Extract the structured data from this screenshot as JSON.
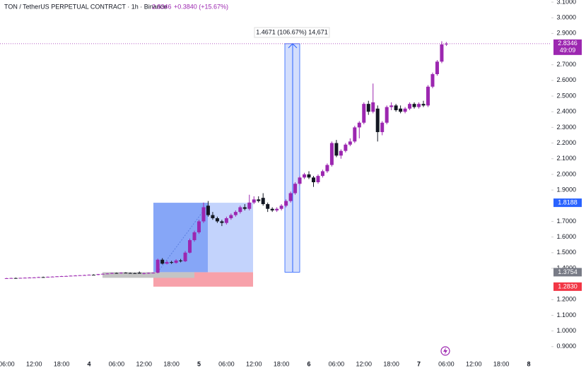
{
  "header": {
    "symbol": "TON / TetherUS PERPETUAL CONTRACT · 1h · Binance",
    "price": "2.8346",
    "change": "+0.3840 (+15.67%)"
  },
  "chart_data": {
    "type": "candlestick",
    "up_color": "#9c27b0",
    "down_color": "#131722",
    "x": [
      -18,
      -17,
      -16,
      -15,
      -14,
      -13,
      -12,
      -11,
      -10,
      -9,
      -8,
      -7,
      -6,
      -5,
      -4,
      -3,
      -2,
      -1,
      0,
      1,
      2,
      3,
      4,
      5,
      6,
      7,
      8,
      9,
      10,
      11,
      12,
      13,
      14,
      15,
      16,
      17,
      18,
      19,
      20,
      21,
      22,
      23,
      24,
      25,
      26,
      27,
      28,
      29,
      30,
      31,
      32,
      33,
      34,
      35,
      36,
      37,
      38,
      39,
      40,
      41,
      42,
      43,
      44,
      45,
      46,
      47,
      48,
      49,
      50,
      51,
      52,
      53,
      54,
      55,
      56,
      57,
      58,
      59,
      60,
      61,
      62,
      63,
      64,
      65,
      66,
      67,
      68,
      69,
      70,
      71,
      72,
      73,
      74,
      75,
      76,
      77,
      78
    ],
    "open": [
      1.336,
      1.337,
      1.338,
      1.337,
      1.339,
      1.34,
      1.341,
      1.342,
      1.344,
      1.343,
      1.346,
      1.347,
      1.349,
      1.35,
      1.351,
      1.353,
      1.354,
      1.356,
      1.357,
      1.359,
      1.358,
      1.363,
      1.365,
      1.367,
      1.37,
      1.368,
      1.372,
      1.37,
      1.369,
      1.372,
      1.366,
      1.369,
      1.371,
      1.372,
      1.455,
      1.43,
      1.44,
      1.435,
      1.45,
      1.445,
      1.5,
      1.58,
      1.63,
      1.7,
      1.8,
      1.74,
      1.72,
      1.7,
      1.69,
      1.72,
      1.74,
      1.76,
      1.79,
      1.78,
      1.82,
      1.84,
      1.85,
      1.81,
      1.78,
      1.77,
      1.78,
      1.8,
      1.83,
      1.88,
      1.94,
      1.98,
      2.0,
      1.98,
      1.95,
      1.99,
      2.02,
      2.06,
      2.2,
      2.12,
      2.15,
      2.19,
      2.21,
      2.3,
      2.33,
      2.45,
      2.4,
      2.42,
      2.27,
      2.33,
      2.43,
      2.44,
      2.42,
      2.4,
      2.42,
      2.45,
      2.43,
      2.45,
      2.44,
      2.56,
      2.64,
      2.72,
      2.83
    ],
    "high": [
      1.339,
      1.34,
      1.341,
      1.34,
      1.342,
      1.343,
      1.344,
      1.346,
      1.347,
      1.347,
      1.349,
      1.35,
      1.352,
      1.353,
      1.355,
      1.356,
      1.357,
      1.359,
      1.361,
      1.362,
      1.364,
      1.367,
      1.369,
      1.372,
      1.373,
      1.374,
      1.375,
      1.373,
      1.372,
      1.38,
      1.372,
      1.373,
      1.374,
      1.462,
      1.465,
      1.45,
      1.448,
      1.458,
      1.46,
      1.51,
      1.59,
      1.64,
      1.71,
      1.82,
      1.83,
      1.76,
      1.73,
      1.71,
      1.73,
      1.75,
      1.77,
      1.8,
      1.81,
      1.87,
      1.86,
      1.86,
      1.88,
      1.82,
      1.79,
      1.79,
      1.81,
      1.84,
      1.89,
      1.95,
      1.99,
      2.01,
      2.02,
      1.99,
      2.0,
      2.03,
      2.07,
      2.21,
      2.22,
      2.16,
      2.2,
      2.23,
      2.31,
      2.34,
      2.46,
      2.47,
      2.58,
      2.44,
      2.34,
      2.44,
      2.46,
      2.45,
      2.44,
      2.43,
      2.46,
      2.46,
      2.46,
      2.47,
      2.57,
      2.65,
      2.73,
      2.85,
      2.845
    ],
    "low": [
      1.334,
      1.335,
      1.336,
      1.335,
      1.337,
      1.338,
      1.339,
      1.34,
      1.342,
      1.341,
      1.344,
      1.345,
      1.347,
      1.348,
      1.349,
      1.351,
      1.352,
      1.354,
      1.355,
      1.357,
      1.356,
      1.361,
      1.363,
      1.365,
      1.366,
      1.366,
      1.368,
      1.366,
      1.366,
      1.366,
      1.362,
      1.365,
      1.368,
      1.368,
      1.425,
      1.425,
      1.428,
      1.43,
      1.438,
      1.44,
      1.495,
      1.57,
      1.62,
      1.69,
      1.73,
      1.71,
      1.69,
      1.67,
      1.68,
      1.71,
      1.73,
      1.75,
      1.77,
      1.77,
      1.81,
      1.82,
      1.8,
      1.76,
      1.76,
      1.76,
      1.77,
      1.79,
      1.82,
      1.87,
      1.93,
      1.97,
      1.97,
      1.92,
      1.94,
      1.98,
      2.01,
      2.05,
      2.11,
      2.1,
      2.14,
      2.18,
      2.2,
      2.23,
      2.32,
      2.38,
      2.39,
      2.21,
      2.25,
      2.32,
      2.41,
      2.4,
      2.39,
      2.39,
      2.41,
      2.42,
      2.42,
      2.43,
      2.43,
      2.55,
      2.63,
      2.71,
      2.82
    ],
    "close": [
      1.337,
      1.338,
      1.337,
      1.339,
      1.34,
      1.341,
      1.342,
      1.344,
      1.343,
      1.346,
      1.347,
      1.349,
      1.35,
      1.351,
      1.353,
      1.354,
      1.356,
      1.357,
      1.359,
      1.358,
      1.363,
      1.365,
      1.367,
      1.37,
      1.368,
      1.372,
      1.37,
      1.369,
      1.368,
      1.366,
      1.369,
      1.371,
      1.372,
      1.455,
      1.43,
      1.44,
      1.435,
      1.45,
      1.445,
      1.5,
      1.58,
      1.63,
      1.7,
      1.79,
      1.74,
      1.72,
      1.7,
      1.69,
      1.72,
      1.74,
      1.76,
      1.79,
      1.78,
      1.82,
      1.84,
      1.83,
      1.81,
      1.78,
      1.77,
      1.78,
      1.8,
      1.83,
      1.88,
      1.94,
      1.98,
      2.0,
      1.98,
      1.95,
      1.99,
      2.02,
      2.06,
      2.2,
      2.12,
      2.15,
      2.19,
      2.21,
      2.3,
      2.33,
      2.45,
      2.4,
      2.46,
      2.27,
      2.33,
      2.43,
      2.44,
      2.41,
      2.4,
      2.42,
      2.45,
      2.43,
      2.45,
      2.44,
      2.56,
      2.64,
      2.72,
      2.83,
      2.8346
    ],
    "xlim": [
      -19.44,
      100.93
    ],
    "xticks": [
      {
        "value": -18,
        "label": "06:00"
      },
      {
        "value": -12,
        "label": "12:00"
      },
      {
        "value": -6,
        "label": "18:00"
      },
      {
        "value": 0,
        "label": "4"
      },
      {
        "value": 6,
        "label": "06:00"
      },
      {
        "value": 12,
        "label": "12:00"
      },
      {
        "value": 18,
        "label": "18:00"
      },
      {
        "value": 24,
        "label": "5"
      },
      {
        "value": 30,
        "label": "06:00"
      },
      {
        "value": 36,
        "label": "12:00"
      },
      {
        "value": 42,
        "label": "18:00"
      },
      {
        "value": 48,
        "label": "6"
      },
      {
        "value": 54,
        "label": "06:00"
      },
      {
        "value": 60,
        "label": "12:00"
      },
      {
        "value": 66,
        "label": "18:00"
      },
      {
        "value": 72,
        "label": "7"
      },
      {
        "value": 78,
        "label": "06:00"
      },
      {
        "value": 84,
        "label": "12:00"
      },
      {
        "value": 90,
        "label": "18:00"
      },
      {
        "value": 96,
        "label": "8"
      }
    ],
    "ylim": [
      0.8,
      3.1
    ],
    "yticks": [
      {
        "value": 3.1,
        "label": "3.1000"
      },
      {
        "value": 3.0,
        "label": "3.0000"
      },
      {
        "value": 2.9,
        "label": "2.9000"
      },
      {
        "value": 2.7,
        "label": "2.7000"
      },
      {
        "value": 2.6,
        "label": "2.6000"
      },
      {
        "value": 2.5,
        "label": "2.5000"
      },
      {
        "value": 2.4,
        "label": "2.4000"
      },
      {
        "value": 2.3,
        "label": "2.3000"
      },
      {
        "value": 2.2,
        "label": "2.2000"
      },
      {
        "value": 2.1,
        "label": "2.1000"
      },
      {
        "value": 2.0,
        "label": "2.0000"
      },
      {
        "value": 1.9,
        "label": "1.9000"
      },
      {
        "value": 1.7,
        "label": "1.7000"
      },
      {
        "value": 1.6,
        "label": "1.6000"
      },
      {
        "value": 1.5,
        "label": "1.5000"
      },
      {
        "value": 1.4,
        "label": "1.4000"
      },
      {
        "value": 1.2,
        "label": "1.2000"
      },
      {
        "value": 1.1,
        "label": "1.1000"
      },
      {
        "value": 1.0,
        "label": "1.0000"
      },
      {
        "value": 0.9,
        "label": "0.9000"
      }
    ],
    "price_lines": [
      {
        "value": 2.8346,
        "label": "2.8346",
        "sublabel": "49:09",
        "color": "#9c27b0"
      },
      {
        "value": 1.8188,
        "label": "1.8188",
        "color": "#2962ff"
      },
      {
        "value": 1.3754,
        "label": "1.3754",
        "color": "#787b86"
      },
      {
        "value": 1.283,
        "label": "1.2830",
        "color": "#f23645"
      }
    ],
    "measure_label": "1.4671 (106.67%) 14,671"
  }
}
